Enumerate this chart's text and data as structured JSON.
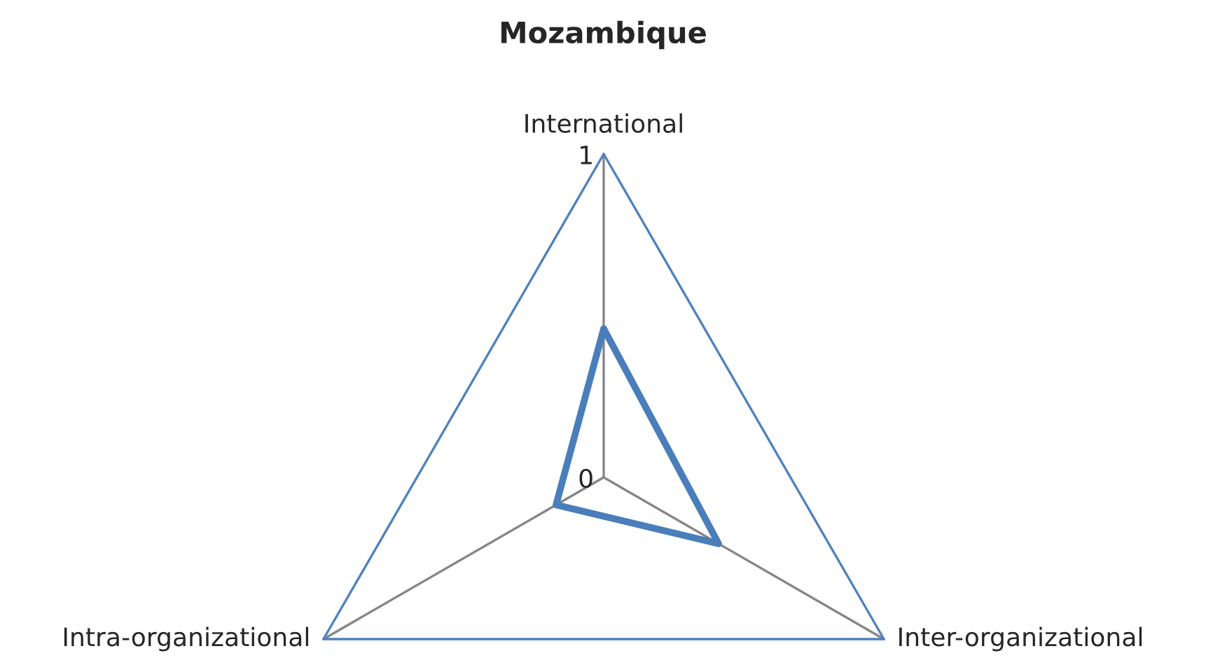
{
  "chart_data": {
    "type": "radar",
    "title": "Mozambique",
    "categories": [
      "International",
      "Inter-organizational",
      "Intra-organizational"
    ],
    "series": [
      {
        "color": "#4a7ebb",
        "values": [
          0.46,
          0.41,
          0.17
        ]
      }
    ],
    "ylim": [
      0,
      1
    ],
    "yticks": [
      0,
      1
    ],
    "grid": true
  }
}
